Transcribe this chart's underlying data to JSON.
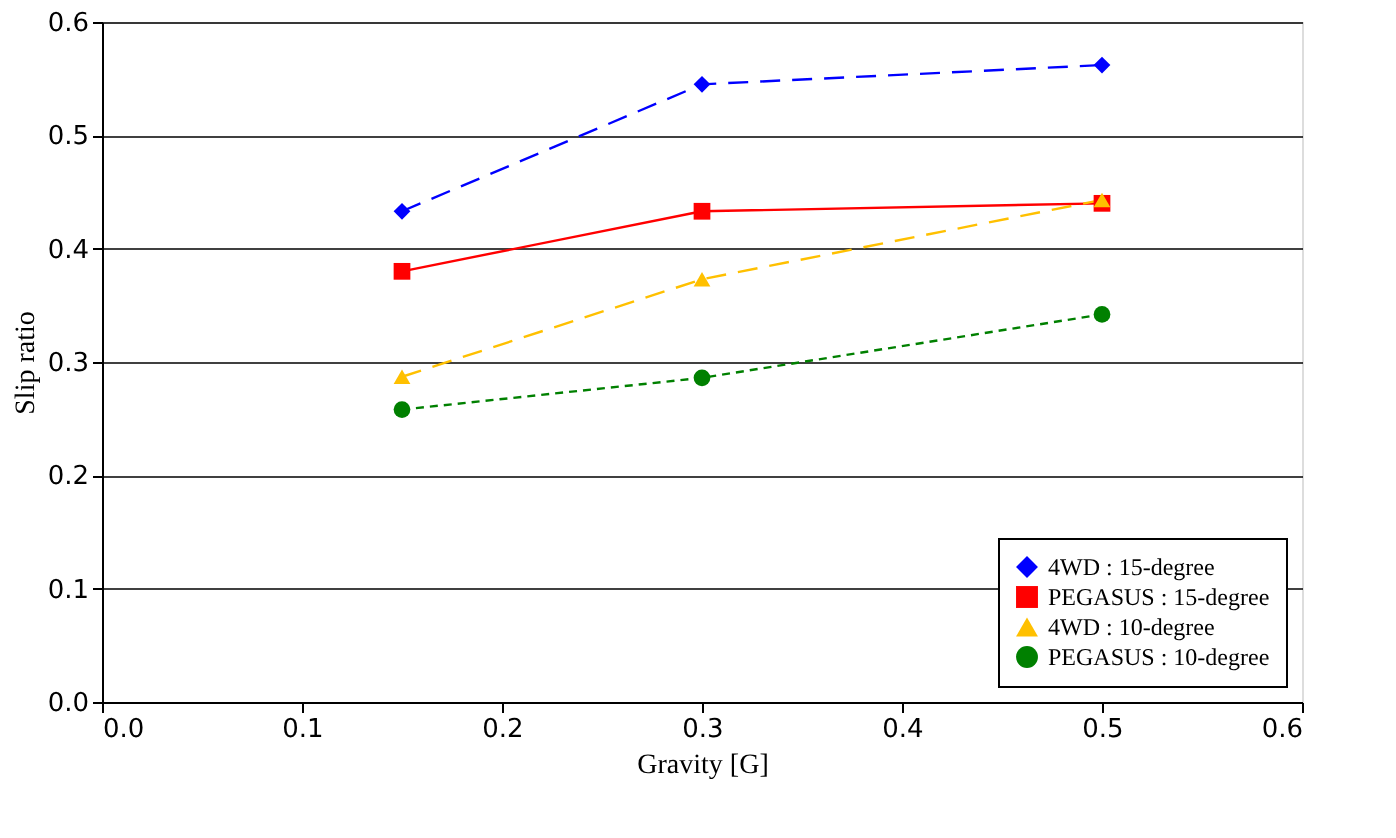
{
  "chart_data": {
    "type": "line",
    "xlabel": "Gravity [G]",
    "ylabel": "Slip ratio",
    "x": [
      0.15,
      0.3,
      0.5
    ],
    "series": [
      {
        "name": "4WD : 15-degree",
        "color": "#0000ff",
        "values": [
          0.433,
          0.545,
          0.562
        ],
        "marker": "diamond",
        "line_style": "dashed"
      },
      {
        "name": "PEGASUS : 15-degree",
        "color": "#ff0000",
        "values": [
          0.38,
          0.433,
          0.44
        ],
        "marker": "square",
        "line_style": "solid"
      },
      {
        "name": "4WD : 10-degree",
        "color": "#ffc000",
        "values": [
          0.287,
          0.373,
          0.443
        ],
        "marker": "triangle",
        "line_style": "dashed"
      },
      {
        "name": "PEGASUS : 10-degree",
        "color": "#008000",
        "values": [
          0.258,
          0.286,
          0.342
        ],
        "marker": "circle",
        "line_style": "dotted"
      }
    ],
    "xlim": [
      0,
      0.6
    ],
    "xticks": [
      {
        "value": 0,
        "label": "0.0"
      },
      0.1,
      0.2,
      0.3,
      0.4,
      0.5,
      0.6
    ],
    "ylim": [
      0,
      0.6
    ],
    "yticks": [
      {
        "value": 0,
        "label": "0.0"
      },
      0.1,
      0.2,
      0.3,
      0.4,
      0.5,
      0.6
    ],
    "grid": "y",
    "legend": "bottom right"
  }
}
